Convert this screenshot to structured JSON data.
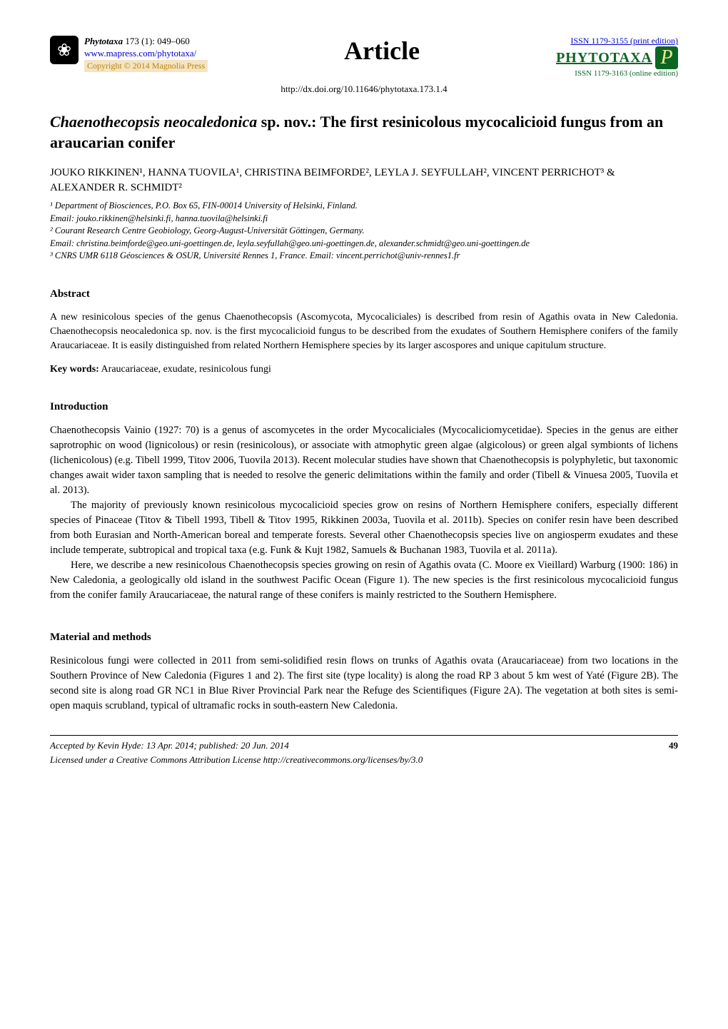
{
  "header": {
    "journal_name": "Phytotaxa",
    "issue": " 173 (1): 049–060",
    "url": "www.mapress.com/phytotaxa/",
    "copyright": "Copyright © 2014 Magnolia Press",
    "article_label": "Article",
    "issn_print": "ISSN 1179-3155 (print edition)",
    "phytotaxa_logo_text": "PHYTOTAXA",
    "p_badge": "P",
    "issn_online": "ISSN 1179-3163 (online edition)",
    "doi": "http://dx.doi.org/10.11646/phytotaxa.173.1.4"
  },
  "title": {
    "italic_part": "Chaenothecopsis neocaledonica",
    "rest": " sp. nov.: The first resinicolous mycocalicioid fungus from an araucarian conifer"
  },
  "authors": "JOUKO RIKKINEN¹, HANNA TUOVILA¹, CHRISTINA  BEIMFORDE², LEYLA  J. SEYFULLAH², VINCENT PERRICHOT³ & ALEXANDER R. SCHMIDT²",
  "affiliations": {
    "a1": "¹ Department of Biosciences, P.O. Box 65, FIN-00014 University of Helsinki, Finland.",
    "a1_email": "Email: jouko.rikkinen@helsinki.fi, hanna.tuovila@helsinki.fi",
    "a2": "² Courant Research Centre Geobiology, Georg-August-Universität Göttingen, Germany.",
    "a2_email": "Email: christina.beimforde@geo.uni-goettingen.de, leyla.seyfullah@geo.uni-goettingen.de, alexander.schmidt@geo.uni-goettingen.de",
    "a3": "³ CNRS UMR 6118 Géosciences & OSUR, Université Rennes 1, France. Email: vincent.perrichot@univ-rennes1.fr"
  },
  "abstract": {
    "heading": "Abstract",
    "text": "A new resinicolous species of the genus Chaenothecopsis (Ascomycota, Mycocaliciales) is described from resin of Agathis ovata in New Caledonia. Chaenothecopsis neocaledonica sp. nov. is the first mycocalicioid fungus to be described from the exudates of Southern Hemisphere conifers of the family Araucariaceae. It is easily distinguished from related Northern Hemisphere species by its larger ascospores and unique capitulum structure.",
    "keywords_label": "Key words:",
    "keywords": " Araucariaceae, exudate, resinicolous fungi"
  },
  "introduction": {
    "heading": "Introduction",
    "p1": "Chaenothecopsis Vainio (1927: 70) is a genus of ascomycetes in the order Mycocaliciales (Mycocaliciomycetidae). Species in the genus are either saprotrophic on wood (lignicolous) or resin (resinicolous), or associate with atmophytic green algae (algicolous) or green algal symbionts of lichens (lichenicolous) (e.g. Tibell 1999, Titov 2006, Tuovila 2013). Recent molecular studies have shown that Chaenothecopsis is polyphyletic, but taxonomic changes await wider taxon sampling that is needed to resolve the generic delimitations within the family and order (Tibell & Vinuesa 2005, Tuovila et al. 2013).",
    "p2": "The majority of previously known resinicolous mycocalicioid species grow on resins of Northern Hemisphere conifers, especially different species of Pinaceae (Titov & Tibell 1993, Tibell & Titov 1995, Rikkinen 2003a, Tuovila et al. 2011b). Species on conifer resin have been described from both Eurasian and North-American boreal and temperate forests. Several other Chaenothecopsis species live on angiosperm exudates and these include temperate, subtropical and tropical taxa (e.g. Funk & Kujt 1982, Samuels & Buchanan 1983, Tuovila et al. 2011a).",
    "p3": "Here, we describe a new resinicolous Chaenothecopsis species growing on resin of Agathis ovata (C. Moore ex Vieillard) Warburg (1900: 186) in New Caledonia, a geologically old island in the southwest Pacific Ocean (Figure 1). The new species is the first resinicolous mycocalicioid fungus from the conifer family Araucariaceae, the natural range of these conifers is mainly restricted to the Southern Hemisphere."
  },
  "methods": {
    "heading": "Material and methods",
    "p1": "Resinicolous fungi were collected in 2011 from semi-solidified resin flows on trunks of Agathis ovata (Araucariaceae) from two locations in the Southern Province of New Caledonia (Figures 1 and 2). The first site (type locality) is along the road RP 3 about 5 km west of Yaté (Figure 2B). The second site is along road GR NC1 in Blue River Provincial Park near the Refuge des Scientifiques (Figure 2A). The vegetation at both sites is semi-open maquis scrubland, typical of ultramafic rocks in south-eastern New Caledonia."
  },
  "footer": {
    "accepted": "Accepted by Kevin Hyde: 13 Apr. 2014; published: 20 Jun. 2014",
    "page": "49",
    "license": "Licensed under a Creative Commons Attribution License http://creativecommons.org/licenses/by/3.0"
  }
}
